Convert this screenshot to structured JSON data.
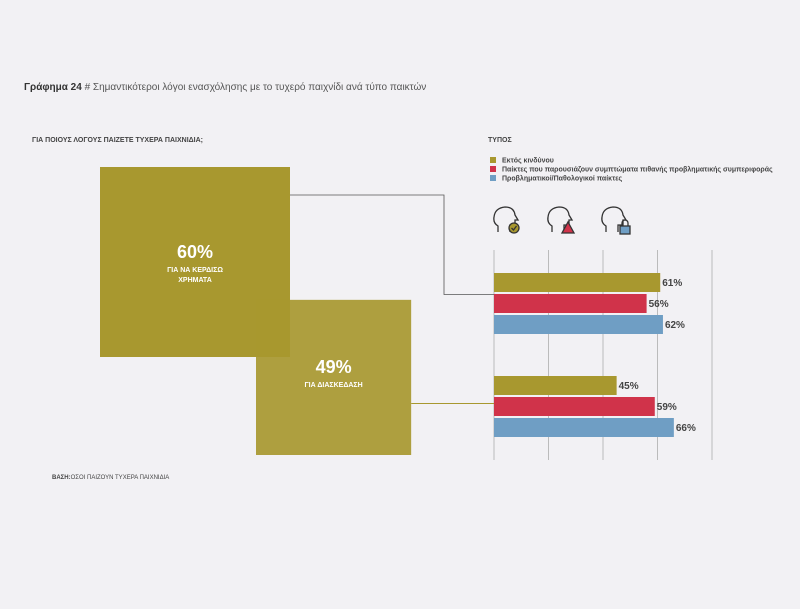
{
  "header": {
    "title_bold": "Γράφημα 24",
    "title": "# Σημαντικότεροι λόγοι ενασχόλησης με το τυχερό παιχνίδι ανά τύπο παικτών"
  },
  "footer": {
    "label": "ΒΑΣΗ:",
    "text": "ΟΣΟΙ ΠΑΙΖΟΥΝ ΤΥΧΕΡΑ ΠΑΙΧΝΙΔΙΑ"
  },
  "chart_data": [
    {
      "type": "square",
      "title": "ΓΙΑ ΠΟΙΟΥΣ ΛΟΓΟΥΣ ΠΑΙΖΕΤΕ ΤΥΧΕΡΑ ΠΑΙΧΝΙΔΙΑ;",
      "categories": [
        "ΓΙΑ ΝΑ ΚΕΡΔΙΣΩ ΧΡΗΜΑΤΑ",
        "ΓΙΑ ΔΙΑΣΚΕΔΑΣΗ"
      ],
      "values": [
        60,
        49
      ],
      "value_labels": [
        "60%",
        "49%"
      ],
      "color": "#a8982f"
    },
    {
      "type": "hbar",
      "legend_title": "ΤΥΠΟΣ",
      "categories": [
        null,
        null
      ],
      "series": [
        {
          "name": "Εκτός κινδύνου",
          "color": "#a8982f",
          "values": [
            61,
            45
          ],
          "value_labels": [
            "61%",
            "45%"
          ]
        },
        {
          "name": "Παίκτες που παρουσιάζουν συμπτώματα πιθανής προβληματικής συμπεριφοράς",
          "color": "#d0334a",
          "values": [
            56,
            59
          ],
          "value_labels": [
            "56%",
            "59%"
          ]
        },
        {
          "name": "Προβληματικοί/Παθολογικοί παίκτες",
          "color": "#6f9ec4",
          "values": [
            62,
            66
          ],
          "value_labels": [
            "62%",
            "66%"
          ]
        }
      ],
      "xlim": [
        0,
        80
      ],
      "xticks": [
        0,
        20,
        40,
        60,
        80
      ],
      "grid": true
    }
  ]
}
